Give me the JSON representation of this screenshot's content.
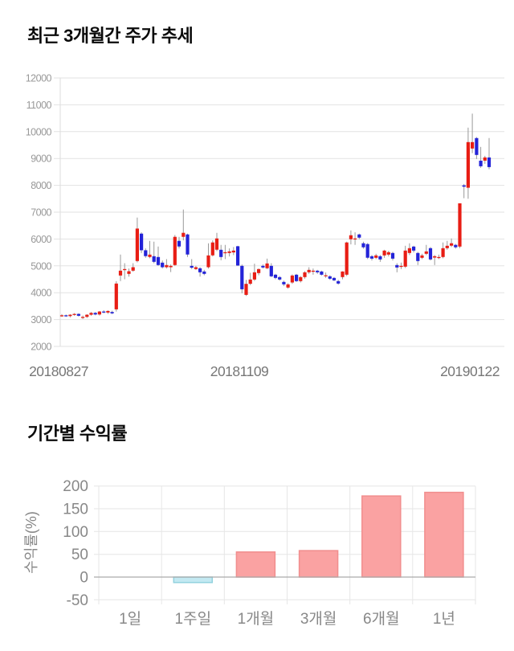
{
  "page": {
    "background": "#ffffff"
  },
  "chart_data": [
    {
      "type": "candlestick",
      "title": "최근 3개월간 주가 추세",
      "x_tick_labels": [
        "20180827",
        "20181109",
        "20190122"
      ],
      "y_ticks": [
        2000,
        3000,
        4000,
        5000,
        6000,
        7000,
        8000,
        9000,
        10000,
        11000,
        12000
      ],
      "ylim": [
        2000,
        12000
      ],
      "grid": true,
      "legend": "none",
      "up_color": "#e81d14",
      "down_color": "#2323d8",
      "wick_color": "#999999",
      "candles_ohlc": [
        [
          3150,
          3200,
          3100,
          3160
        ],
        [
          3160,
          3190,
          3100,
          3130
        ],
        [
          3130,
          3200,
          3080,
          3180
        ],
        [
          3180,
          3240,
          3140,
          3210
        ],
        [
          3210,
          3230,
          3110,
          3140
        ],
        [
          3080,
          3150,
          3020,
          3100
        ],
        [
          3100,
          3200,
          3060,
          3180
        ],
        [
          3180,
          3280,
          3140,
          3250
        ],
        [
          3250,
          3280,
          3160,
          3190
        ],
        [
          3190,
          3320,
          3150,
          3300
        ],
        [
          3300,
          3350,
          3230,
          3260
        ],
        [
          3260,
          3340,
          3210,
          3320
        ],
        [
          3280,
          3330,
          3200,
          3230
        ],
        [
          3380,
          4430,
          3300,
          4340
        ],
        [
          4640,
          5420,
          4430,
          4820
        ],
        [
          4850,
          5100,
          4500,
          4880
        ],
        [
          4700,
          4900,
          4600,
          4800
        ],
        [
          4820,
          5100,
          4780,
          4950
        ],
        [
          5180,
          6800,
          5130,
          6390
        ],
        [
          6200,
          6250,
          5480,
          5580
        ],
        [
          5580,
          5650,
          5300,
          5360
        ],
        [
          5330,
          5930,
          5280,
          5420
        ],
        [
          5360,
          5900,
          5100,
          5150
        ],
        [
          5330,
          5720,
          5000,
          5030
        ],
        [
          5120,
          5200,
          4900,
          4950
        ],
        [
          4950,
          5250,
          4900,
          5030
        ],
        [
          4950,
          5050,
          4770,
          5000
        ],
        [
          5030,
          6150,
          5000,
          6080
        ],
        [
          5930,
          6080,
          5650,
          5720
        ],
        [
          6080,
          7100,
          5950,
          6230
        ],
        [
          6170,
          6200,
          5330,
          5420
        ],
        [
          5000,
          5250,
          4880,
          4930
        ],
        [
          4880,
          5000,
          4850,
          4950
        ],
        [
          4910,
          4950,
          4600,
          4760
        ],
        [
          4790,
          4850,
          4650,
          4700
        ],
        [
          4950,
          5840,
          4900,
          5390
        ],
        [
          5390,
          5950,
          5350,
          5870
        ],
        [
          5600,
          6230,
          5550,
          6020
        ],
        [
          5600,
          5780,
          5210,
          5330
        ],
        [
          5480,
          5780,
          5250,
          5510
        ],
        [
          5480,
          5650,
          5350,
          5540
        ],
        [
          5500,
          5700,
          5400,
          5570
        ],
        [
          5730,
          5750,
          5000,
          5010
        ],
        [
          5000,
          5050,
          3980,
          4130
        ],
        [
          3920,
          4480,
          3880,
          4330
        ],
        [
          4330,
          4740,
          4280,
          4490
        ],
        [
          4490,
          5080,
          4440,
          4760
        ],
        [
          4730,
          4900,
          4650,
          4880
        ],
        [
          5000,
          5050,
          4900,
          4940
        ],
        [
          4910,
          5270,
          4880,
          5090
        ],
        [
          5000,
          5100,
          4580,
          4610
        ],
        [
          4670,
          4700,
          4500,
          4550
        ],
        [
          4580,
          4620,
          4450,
          4490
        ],
        [
          4400,
          4450,
          4250,
          4310
        ],
        [
          4190,
          4350,
          4150,
          4310
        ],
        [
          4380,
          4680,
          4330,
          4640
        ],
        [
          4670,
          4700,
          4400,
          4430
        ],
        [
          4430,
          4620,
          4380,
          4580
        ],
        [
          4580,
          4800,
          4520,
          4760
        ],
        [
          4760,
          4950,
          4700,
          4850
        ],
        [
          4780,
          4900,
          4670,
          4820
        ],
        [
          4820,
          4850,
          4700,
          4760
        ],
        [
          4790,
          4820,
          4640,
          4670
        ],
        [
          4640,
          4750,
          4550,
          4650
        ],
        [
          4610,
          4650,
          4480,
          4520
        ],
        [
          4550,
          4580,
          4430,
          4460
        ],
        [
          4430,
          4480,
          4300,
          4340
        ],
        [
          4580,
          4800,
          4500,
          4790
        ],
        [
          4670,
          5900,
          4620,
          5870
        ],
        [
          5990,
          6320,
          5800,
          6140
        ],
        [
          6020,
          6250,
          5780,
          6020
        ],
        [
          6170,
          6200,
          5990,
          6050
        ],
        [
          5840,
          5900,
          5640,
          5690
        ],
        [
          5810,
          5850,
          5250,
          5300
        ],
        [
          5360,
          5400,
          5200,
          5270
        ],
        [
          5300,
          5450,
          5250,
          5390
        ],
        [
          5360,
          5400,
          5150,
          5240
        ],
        [
          5390,
          5600,
          5300,
          5570
        ],
        [
          5420,
          5560,
          5350,
          5510
        ],
        [
          5480,
          5520,
          5200,
          5270
        ],
        [
          5030,
          5100,
          4760,
          4940
        ],
        [
          5000,
          5120,
          4880,
          5000
        ],
        [
          4970,
          5750,
          4920,
          5570
        ],
        [
          5480,
          5840,
          5400,
          5660
        ],
        [
          5720,
          5750,
          5500,
          5570
        ],
        [
          5480,
          5520,
          5030,
          5180
        ],
        [
          5300,
          5450,
          5250,
          5390
        ],
        [
          5450,
          5780,
          5400,
          5540
        ],
        [
          5660,
          5700,
          5200,
          5240
        ],
        [
          5310,
          5400,
          5030,
          5360
        ],
        [
          5330,
          5420,
          5250,
          5330
        ],
        [
          5330,
          5870,
          5280,
          5660
        ],
        [
          5660,
          5930,
          5600,
          5750
        ],
        [
          5750,
          6020,
          5700,
          5840
        ],
        [
          5780,
          5820,
          5640,
          5690
        ],
        [
          5720,
          7330,
          5660,
          7330
        ],
        [
          8000,
          8050,
          7520,
          7950
        ],
        [
          7910,
          10150,
          7500,
          9610
        ],
        [
          9370,
          10670,
          9200,
          9610
        ],
        [
          9760,
          9800,
          8980,
          9130
        ],
        [
          8920,
          9430,
          8650,
          8710
        ],
        [
          8920,
          9100,
          8800,
          9040
        ],
        [
          9040,
          9760,
          8600,
          8680
        ]
      ]
    },
    {
      "type": "bar",
      "title": "기간별 수익률",
      "categories": [
        "1일",
        "1주일",
        "1개월",
        "3개월",
        "6개월",
        "1년"
      ],
      "values": [
        0,
        -12,
        55,
        58,
        178,
        186
      ],
      "ylabel": "수익률(%)",
      "ylim": [
        -50,
        200
      ],
      "y_ticks": [
        -50,
        0,
        50,
        100,
        150,
        200
      ],
      "grid": true,
      "positive_color": "#faa2a2",
      "positive_border": "#f18e8e",
      "negative_color": "#c3e9f2",
      "negative_border": "#92d2de"
    }
  ]
}
